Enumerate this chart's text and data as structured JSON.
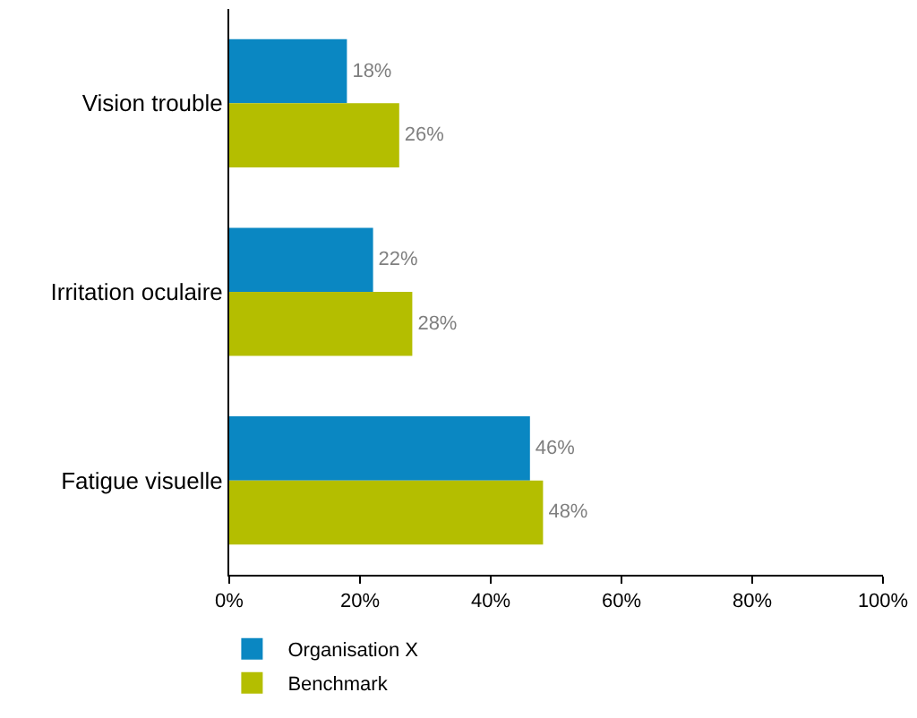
{
  "chart_data": {
    "type": "bar",
    "orientation": "horizontal",
    "categories": [
      "Vision trouble",
      "Irritation oculaire",
      "Fatigue visuelle"
    ],
    "series": [
      {
        "name": "Organisation X",
        "color": "#0a87c2",
        "values": [
          18,
          22,
          46
        ],
        "value_labels": [
          "18%",
          "22%",
          "46%"
        ]
      },
      {
        "name": "Benchmark",
        "color": "#b4be00",
        "values": [
          26,
          28,
          48
        ],
        "value_labels": [
          "26%",
          "28%",
          "48%"
        ]
      }
    ],
    "xlim": [
      0,
      100
    ],
    "xticks": [
      {
        "value": 0,
        "label": "0%"
      },
      {
        "value": 20,
        "label": "20%"
      },
      {
        "value": 40,
        "label": "40%"
      },
      {
        "value": 60,
        "label": "60%"
      },
      {
        "value": 80,
        "label": "80%"
      },
      {
        "value": 100,
        "label": "100%"
      }
    ],
    "legend": "bottom left"
  }
}
